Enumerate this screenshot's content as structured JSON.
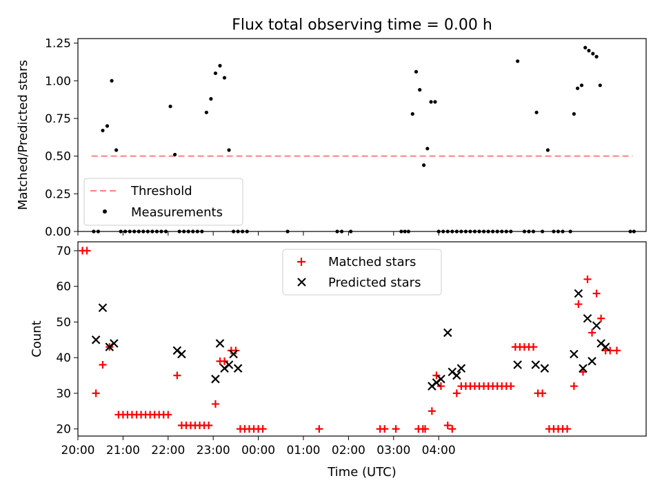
{
  "chart_data": [
    {
      "type": "scatter",
      "title": "Flux total observing time = 0.00 h",
      "xlabel": "",
      "ylabel": "Matched/Predicted stars",
      "xlim": [
        -4.0,
        8.6
      ],
      "ylim": [
        0.0,
        1.28
      ],
      "x_unit": "hours relative to 00:00 UTC",
      "yticks": [
        0.0,
        0.25,
        0.5,
        0.75,
        1.0,
        1.25
      ],
      "ytick_labels": [
        "0.00",
        "0.25",
        "0.50",
        "0.75",
        "1.00",
        "1.25"
      ],
      "threshold": {
        "name": "Threshold",
        "value": 0.5,
        "x_range": [
          -3.7,
          8.3
        ],
        "color": "#ff7f7f",
        "style": "dashed"
      },
      "series": [
        {
          "name": "Measurements",
          "color": "#000000",
          "marker": "dot",
          "points": [
            [
              -3.65,
              0.0
            ],
            [
              -3.55,
              0.0
            ],
            [
              -3.45,
              0.67
            ],
            [
              -3.35,
              0.7
            ],
            [
              -3.25,
              1.0
            ],
            [
              -3.15,
              0.54
            ],
            [
              -3.05,
              0.0
            ],
            [
              -2.95,
              0.0
            ],
            [
              -2.85,
              0.0
            ],
            [
              -2.75,
              0.0
            ],
            [
              -2.65,
              0.0
            ],
            [
              -2.55,
              0.0
            ],
            [
              -2.45,
              0.0
            ],
            [
              -2.35,
              0.0
            ],
            [
              -2.25,
              0.0
            ],
            [
              -2.15,
              0.0
            ],
            [
              -2.05,
              0.0
            ],
            [
              -1.95,
              0.83
            ],
            [
              -1.85,
              0.51
            ],
            [
              -1.75,
              0.0
            ],
            [
              -1.65,
              0.0
            ],
            [
              -1.55,
              0.0
            ],
            [
              -1.45,
              0.0
            ],
            [
              -1.35,
              0.0
            ],
            [
              -1.25,
              0.0
            ],
            [
              -1.15,
              0.79
            ],
            [
              -1.05,
              0.88
            ],
            [
              -0.95,
              1.05
            ],
            [
              -0.85,
              1.1
            ],
            [
              -0.75,
              1.02
            ],
            [
              -0.65,
              0.54
            ],
            [
              -0.55,
              0.0
            ],
            [
              -0.45,
              0.0
            ],
            [
              -0.35,
              0.0
            ],
            [
              -0.25,
              0.0
            ],
            [
              0.65,
              0.0
            ],
            [
              1.75,
              0.0
            ],
            [
              1.85,
              0.0
            ],
            [
              2.05,
              0.0
            ],
            [
              3.17,
              0.0
            ],
            [
              3.25,
              0.0
            ],
            [
              3.33,
              0.0
            ],
            [
              3.42,
              0.78
            ],
            [
              3.5,
              1.06
            ],
            [
              3.58,
              0.94
            ],
            [
              3.67,
              0.44
            ],
            [
              3.75,
              0.55
            ],
            [
              3.83,
              0.86
            ],
            [
              3.92,
              0.86
            ],
            [
              4.0,
              0.0
            ],
            [
              4.1,
              0.0
            ],
            [
              4.2,
              0.0
            ],
            [
              4.3,
              0.0
            ],
            [
              4.4,
              0.0
            ],
            [
              4.5,
              0.0
            ],
            [
              4.6,
              0.0
            ],
            [
              4.7,
              0.0
            ],
            [
              4.8,
              0.0
            ],
            [
              4.9,
              0.0
            ],
            [
              5.0,
              0.0
            ],
            [
              5.1,
              0.0
            ],
            [
              5.2,
              0.0
            ],
            [
              5.3,
              0.0
            ],
            [
              5.4,
              0.0
            ],
            [
              5.5,
              0.0
            ],
            [
              5.6,
              0.0
            ],
            [
              5.75,
              1.13
            ],
            [
              5.9,
              0.0
            ],
            [
              6.0,
              0.0
            ],
            [
              6.1,
              0.0
            ],
            [
              6.17,
              0.79
            ],
            [
              6.3,
              0.0
            ],
            [
              6.42,
              0.54
            ],
            [
              6.55,
              0.0
            ],
            [
              6.65,
              0.0
            ],
            [
              6.75,
              0.0
            ],
            [
              6.92,
              0.0
            ],
            [
              7.0,
              0.78
            ],
            [
              7.08,
              0.95
            ],
            [
              7.17,
              0.97
            ],
            [
              7.25,
              1.22
            ],
            [
              7.33,
              1.2
            ],
            [
              7.42,
              1.18
            ],
            [
              7.5,
              1.16
            ],
            [
              7.58,
              0.97
            ],
            [
              8.25,
              0.0
            ],
            [
              8.33,
              0.0
            ]
          ]
        }
      ],
      "legend": {
        "position": "lower-left",
        "entries": [
          "Threshold",
          "Measurements"
        ]
      }
    },
    {
      "type": "scatter",
      "title": "",
      "xlabel": "Time (UTC)",
      "ylabel": "Count",
      "xlim": [
        -4.0,
        8.6
      ],
      "ylim": [
        18.0,
        72.5
      ],
      "x_unit": "hours relative to 00:00 UTC",
      "xticks": [
        -4,
        -3,
        -2,
        -1,
        0,
        1,
        2,
        3,
        4
      ],
      "xtick_labels": [
        "20:00",
        "21:00",
        "22:00",
        "23:00",
        "00:00",
        "01:00",
        "02:00",
        "03:00",
        "04:00"
      ],
      "yticks": [
        20,
        30,
        40,
        50,
        60,
        70
      ],
      "ytick_labels": [
        "20",
        "30",
        "40",
        "50",
        "60",
        "70"
      ],
      "series": [
        {
          "name": "Matched stars",
          "color": "#ff0000",
          "marker": "plus",
          "points": [
            [
              -3.9,
              70
            ],
            [
              -3.8,
              70
            ],
            [
              -3.6,
              30
            ],
            [
              -3.45,
              38
            ],
            [
              -3.3,
              43
            ],
            [
              -3.1,
              24
            ],
            [
              -3.0,
              24
            ],
            [
              -2.9,
              24
            ],
            [
              -2.8,
              24
            ],
            [
              -2.7,
              24
            ],
            [
              -2.6,
              24
            ],
            [
              -2.5,
              24
            ],
            [
              -2.4,
              24
            ],
            [
              -2.3,
              24
            ],
            [
              -2.2,
              24
            ],
            [
              -2.1,
              24
            ],
            [
              -2.0,
              24
            ],
            [
              -1.8,
              35
            ],
            [
              -1.7,
              21
            ],
            [
              -1.6,
              21
            ],
            [
              -1.5,
              21
            ],
            [
              -1.4,
              21
            ],
            [
              -1.3,
              21
            ],
            [
              -1.2,
              21
            ],
            [
              -1.1,
              21
            ],
            [
              -0.95,
              27
            ],
            [
              -0.85,
              39
            ],
            [
              -0.75,
              39
            ],
            [
              -0.6,
              42
            ],
            [
              -0.5,
              42
            ],
            [
              -0.4,
              20
            ],
            [
              -0.3,
              20
            ],
            [
              -0.2,
              20
            ],
            [
              -0.1,
              20
            ],
            [
              0.0,
              20
            ],
            [
              0.1,
              20
            ],
            [
              1.35,
              20
            ],
            [
              2.7,
              20
            ],
            [
              2.8,
              20
            ],
            [
              3.05,
              20
            ],
            [
              3.55,
              20
            ],
            [
              3.65,
              20
            ],
            [
              3.7,
              20
            ],
            [
              3.85,
              25
            ],
            [
              3.95,
              35
            ],
            [
              4.05,
              32
            ],
            [
              4.2,
              21
            ],
            [
              4.3,
              20
            ],
            [
              4.4,
              30
            ],
            [
              4.5,
              32
            ],
            [
              4.6,
              32
            ],
            [
              4.7,
              32
            ],
            [
              4.8,
              32
            ],
            [
              4.9,
              32
            ],
            [
              5.0,
              32
            ],
            [
              5.1,
              32
            ],
            [
              5.2,
              32
            ],
            [
              5.3,
              32
            ],
            [
              5.4,
              32
            ],
            [
              5.5,
              32
            ],
            [
              5.6,
              32
            ],
            [
              5.7,
              43
            ],
            [
              5.8,
              43
            ],
            [
              5.9,
              43
            ],
            [
              6.0,
              43
            ],
            [
              6.1,
              43
            ],
            [
              6.2,
              30
            ],
            [
              6.3,
              30
            ],
            [
              6.45,
              20
            ],
            [
              6.55,
              20
            ],
            [
              6.65,
              20
            ],
            [
              6.75,
              20
            ],
            [
              6.85,
              20
            ],
            [
              7.0,
              32
            ],
            [
              7.1,
              55
            ],
            [
              7.2,
              36
            ],
            [
              7.3,
              62
            ],
            [
              7.4,
              47
            ],
            [
              7.5,
              58
            ],
            [
              7.6,
              51
            ],
            [
              7.7,
              42
            ],
            [
              7.8,
              42
            ],
            [
              7.95,
              42
            ]
          ]
        },
        {
          "name": "Predicted stars",
          "color": "#000000",
          "marker": "x",
          "points": [
            [
              -3.6,
              45
            ],
            [
              -3.45,
              54
            ],
            [
              -3.3,
              43
            ],
            [
              -3.2,
              44
            ],
            [
              -1.8,
              42
            ],
            [
              -1.7,
              41
            ],
            [
              -0.95,
              34
            ],
            [
              -0.85,
              44
            ],
            [
              -0.75,
              37
            ],
            [
              -0.65,
              38
            ],
            [
              -0.55,
              41
            ],
            [
              -0.45,
              37
            ],
            [
              3.85,
              32
            ],
            [
              3.95,
              33
            ],
            [
              4.05,
              34
            ],
            [
              4.2,
              47
            ],
            [
              4.3,
              36
            ],
            [
              4.4,
              35
            ],
            [
              4.5,
              37
            ],
            [
              5.75,
              38
            ],
            [
              6.15,
              38
            ],
            [
              6.35,
              37
            ],
            [
              7.0,
              41
            ],
            [
              7.1,
              58
            ],
            [
              7.2,
              37
            ],
            [
              7.3,
              51
            ],
            [
              7.4,
              39
            ],
            [
              7.5,
              49
            ],
            [
              7.6,
              44
            ],
            [
              7.7,
              43
            ]
          ]
        }
      ],
      "legend": {
        "position": "top-center",
        "entries": [
          "Matched stars",
          "Predicted stars"
        ]
      }
    }
  ]
}
